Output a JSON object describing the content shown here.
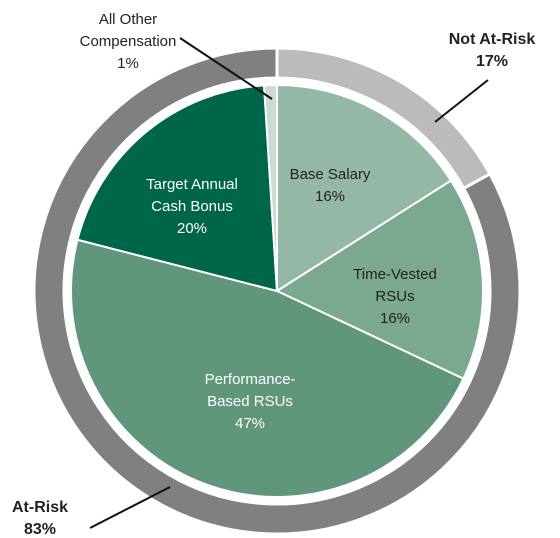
{
  "chart_data": {
    "type": "pie",
    "categories": [
      [
        "Base Salary"
      ],
      [
        "Time-Vested",
        "RSUs"
      ],
      [
        "Performance-",
        "Based RSUs"
      ],
      [
        "Target Annual",
        "Cash Bonus"
      ],
      [
        "All Other",
        "Compensation"
      ]
    ],
    "values": [
      16,
      16,
      47,
      20,
      1
    ],
    "value_labels": [
      "16%",
      "16%",
      "47%",
      "20%",
      "1%"
    ],
    "colors": [
      "#95b8a6",
      "#7ba891",
      "#5f967c",
      "#00664a",
      "#c9dcd2"
    ],
    "label_colors": [
      "#222222",
      "#222222",
      "#ffffff",
      "#ffffff",
      "#222222"
    ],
    "ring": {
      "categories": [
        "Not At-Risk",
        "At-Risk"
      ],
      "values": [
        17,
        83
      ],
      "value_labels": [
        "17%",
        "83%"
      ],
      "colors": [
        "#bbbbbd",
        "#808083"
      ]
    }
  }
}
